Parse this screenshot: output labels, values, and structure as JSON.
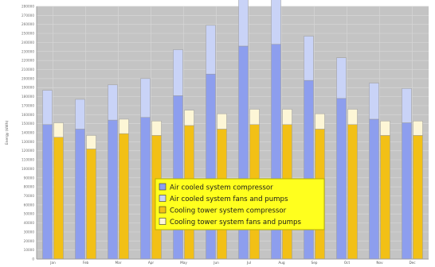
{
  "chart_data": {
    "type": "bar",
    "stacked": true,
    "grouped": true,
    "grid": true,
    "legend_position": "center-bottom",
    "categories": [
      "Jan",
      "Feb",
      "Mar",
      "Apr",
      "May",
      "Jun",
      "Jul",
      "Aug",
      "Sep",
      "Oct",
      "Nov",
      "Dec"
    ],
    "ylabel": "Energy (kWh)",
    "ylim": [
      0,
      280000
    ],
    "y_ticks": [
      "0",
      "10000",
      "20000",
      "30000",
      "40000",
      "50000",
      "60000",
      "70000",
      "80000",
      "90000",
      "100000",
      "110000",
      "120000",
      "130000",
      "140000",
      "150000",
      "160000",
      "170000",
      "180000",
      "190000",
      "200000",
      "210000",
      "220000",
      "230000",
      "240000",
      "250000",
      "260000",
      "270000",
      "280000"
    ],
    "stacks": [
      {
        "name": "Air cooled system",
        "series": [
          {
            "name": "Air cooled system compressor",
            "color": "#8d9eee",
            "values": [
              149000,
              144000,
              154000,
              157000,
              181000,
              205000,
              236000,
              238000,
              198000,
              178000,
              155000,
              151000
            ]
          },
          {
            "name": "Air cooled system fans and pumps",
            "color": "#c9d3f7",
            "values": [
              38000,
              33000,
              39000,
              43000,
              51000,
              54000,
              62000,
              67000,
              49000,
              45000,
              40000,
              38000
            ]
          }
        ]
      },
      {
        "name": "Cooling tower system",
        "series": [
          {
            "name": "Cooling tower system compressor",
            "color": "#f2c016",
            "values": [
              135000,
              122000,
              139000,
              137000,
              148000,
              144000,
              149000,
              149000,
              144000,
              149000,
              137000,
              137000
            ]
          },
          {
            "name": "Cooling tower system fans and pumps",
            "color": "#fdf6d6",
            "values": [
              16000,
              15000,
              16000,
              16000,
              17000,
              17000,
              17000,
              17000,
              17000,
              17000,
              16000,
              16000
            ]
          }
        ]
      }
    ]
  },
  "colors": {
    "plot_background": "#c4c4c4",
    "gridline": "#d6d6d6",
    "legend_background": "#ffff1e",
    "legend_border": "#b8b000"
  }
}
